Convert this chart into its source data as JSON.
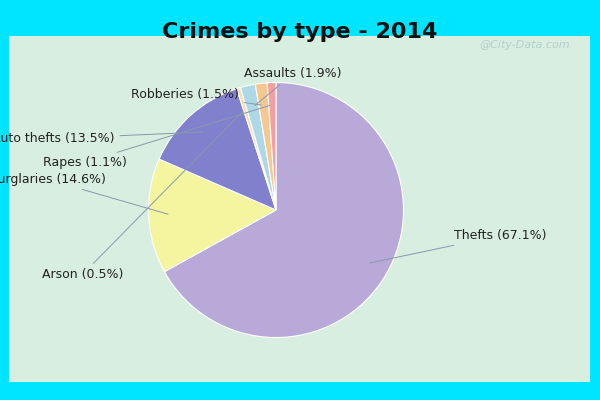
{
  "title": "Crimes by type - 2014",
  "labels": [
    "Thefts",
    "Burglaries",
    "Auto thefts",
    "Arson",
    "Assaults",
    "Robberies",
    "Rapes"
  ],
  "values": [
    67.1,
    14.6,
    13.5,
    0.5,
    1.9,
    1.5,
    1.1
  ],
  "colors": [
    "#b8a9d9",
    "#f5f5a0",
    "#8080cc",
    "#f5deb3",
    "#add8e6",
    "#f4c890",
    "#f4a0a0"
  ],
  "background_border": "#00e5ff",
  "background_main": "#d8eee0",
  "title_fontsize": 16,
  "label_fontsize": 9,
  "watermark": "@City-Data.com",
  "startangle": 90
}
